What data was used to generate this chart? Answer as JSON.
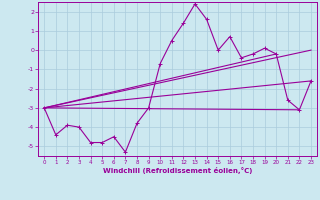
{
  "xlabel": "Windchill (Refroidissement éolien,°C)",
  "background_color": "#cce8f0",
  "line_color": "#990099",
  "grid_color": "#aaccdd",
  "x_hours": [
    0,
    1,
    2,
    3,
    4,
    5,
    6,
    7,
    8,
    9,
    10,
    11,
    12,
    13,
    14,
    15,
    16,
    17,
    18,
    19,
    20,
    21,
    22,
    23
  ],
  "windchill_values": [
    -3.0,
    -4.4,
    -3.9,
    -4.0,
    -4.8,
    -4.8,
    -4.5,
    -5.3,
    -3.8,
    -3.0,
    -0.7,
    0.5,
    1.4,
    2.4,
    1.6,
    0.0,
    0.7,
    -0.4,
    -0.2,
    0.1,
    -0.2,
    -2.6,
    -3.1,
    -1.6
  ],
  "ylim": [
    -5.5,
    2.5
  ],
  "xlim": [
    -0.5,
    23.5
  ],
  "yticks": [
    2,
    1,
    0,
    -1,
    -2,
    -3,
    -4,
    -5
  ],
  "xticks": [
    0,
    1,
    2,
    3,
    4,
    5,
    6,
    7,
    8,
    9,
    10,
    11,
    12,
    13,
    14,
    15,
    16,
    17,
    18,
    19,
    20,
    21,
    22,
    23
  ],
  "trend_lines": [
    {
      "x": [
        0,
        23
      ],
      "y": [
        -3.0,
        -1.6
      ]
    },
    {
      "x": [
        0,
        20
      ],
      "y": [
        -3.0,
        -0.2
      ]
    },
    {
      "x": [
        0,
        22
      ],
      "y": [
        -3.0,
        -3.1
      ]
    },
    {
      "x": [
        0,
        23
      ],
      "y": [
        -3.0,
        0.0
      ]
    }
  ]
}
